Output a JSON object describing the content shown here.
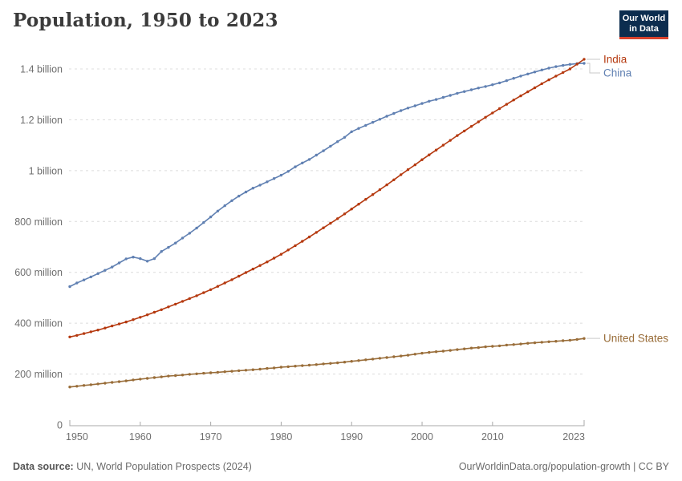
{
  "header": {
    "title": "Population, 1950 to 2023"
  },
  "logo": {
    "line1": "Our World",
    "line2": "in Data",
    "bg_color": "#0c2d4f",
    "accent_color": "#d8422d",
    "text_color": "#ffffff"
  },
  "footer": {
    "source_label": "Data source:",
    "source_text": " UN, World Population Prospects (2024)",
    "right_text": "OurWorldinData.org/population-growth | CC BY"
  },
  "colors": {
    "grid": "#dcdcdc",
    "axis": "#a8a8a8",
    "tick_text": "#6e6e6e",
    "connector": "#c9c9c9",
    "title_text": "#3b3b3b"
  },
  "chart_data": {
    "type": "line",
    "title": "Population, 1950 to 2023",
    "xlabel": "",
    "ylabel": "",
    "x_start": 1950,
    "x_end": 2023,
    "x_step": 1,
    "x_ticks": [
      1950,
      1960,
      1970,
      1980,
      1990,
      2000,
      2010,
      2023
    ],
    "y_ticks": [
      {
        "value": 0,
        "label": "0"
      },
      {
        "value": 200,
        "label": "200 million"
      },
      {
        "value": 400,
        "label": "400 million"
      },
      {
        "value": 600,
        "label": "600 million"
      },
      {
        "value": 800,
        "label": "800 million"
      },
      {
        "value": 1000,
        "label": "1 billion"
      },
      {
        "value": 1200,
        "label": "1.2 billion"
      },
      {
        "value": 1400,
        "label": "1.4 billion"
      }
    ],
    "ylim": [
      0,
      1400
    ],
    "unit": "million people",
    "grid": true,
    "legend_position": "right-end-labels",
    "series": [
      {
        "name": "China",
        "color": "#6080b2",
        "values": [
          544,
          558,
          570,
          582,
          595,
          608,
          621,
          637,
          653,
          660,
          654,
          644,
          654,
          682,
          698,
          715,
          735,
          754,
          774,
          796,
          818,
          841,
          862,
          882,
          900,
          916,
          931,
          943,
          956,
          969,
          982,
          997,
          1015,
          1030,
          1044,
          1061,
          1078,
          1096,
          1114,
          1131,
          1153,
          1166,
          1178,
          1190,
          1202,
          1214,
          1225,
          1236,
          1246,
          1255,
          1264,
          1273,
          1280,
          1288,
          1296,
          1304,
          1311,
          1318,
          1325,
          1331,
          1338,
          1345,
          1354,
          1363,
          1372,
          1380,
          1388,
          1396,
          1403,
          1409,
          1414,
          1418,
          1421,
          1422
        ]
      },
      {
        "name": "India",
        "color": "#b5390f",
        "values": [
          346,
          352,
          359,
          366,
          373,
          381,
          389,
          397,
          405,
          414,
          423,
          433,
          443,
          453,
          464,
          475,
          486,
          497,
          508,
          520,
          532,
          545,
          558,
          571,
          585,
          599,
          613,
          627,
          641,
          656,
          671,
          688,
          705,
          722,
          739,
          757,
          775,
          793,
          811,
          830,
          849,
          868,
          887,
          906,
          925,
          944,
          964,
          984,
          1004,
          1023,
          1043,
          1062,
          1081,
          1100,
          1119,
          1138,
          1156,
          1174,
          1192,
          1210,
          1227,
          1244,
          1261,
          1278,
          1294,
          1310,
          1326,
          1342,
          1357,
          1372,
          1386,
          1400,
          1419,
          1438
        ]
      },
      {
        "name": "United States",
        "color": "#996d39",
        "values": [
          149,
          152,
          155,
          158,
          161,
          164,
          167,
          170,
          173,
          177,
          180,
          183,
          186,
          189,
          192,
          194,
          196,
          199,
          201,
          203,
          205,
          207,
          209,
          211,
          213,
          215,
          217,
          219,
          222,
          224,
          227,
          229,
          231,
          233,
          235,
          237,
          240,
          242,
          244,
          247,
          250,
          253,
          256,
          259,
          262,
          265,
          268,
          271,
          274,
          278,
          282,
          285,
          288,
          290,
          293,
          296,
          299,
          302,
          304,
          307,
          309,
          311,
          314,
          316,
          318,
          321,
          323,
          325,
          327,
          329,
          331,
          333,
          336,
          340
        ]
      }
    ]
  }
}
